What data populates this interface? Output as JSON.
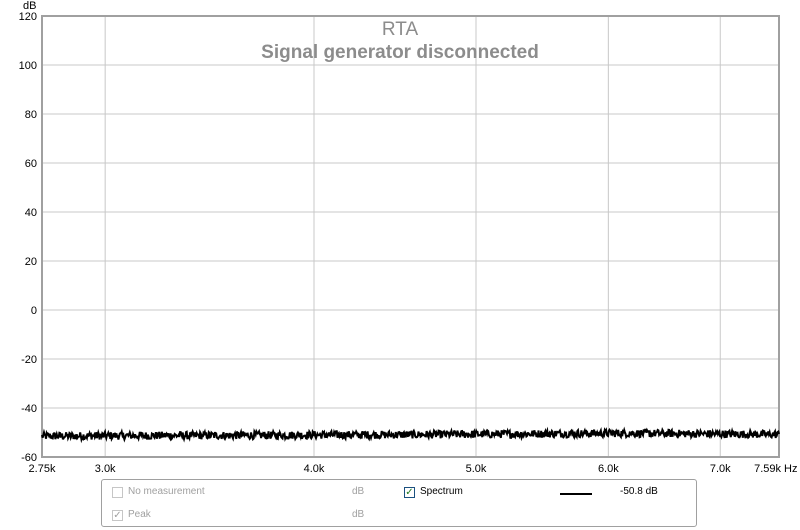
{
  "chart_data": {
    "type": "line",
    "title": "RTA",
    "subtitle": "Signal generator disconnected",
    "ylabel": "dB",
    "xunit": "Hz",
    "x_scale": "log",
    "xlim": [
      2750,
      7590
    ],
    "ylim": [
      -60,
      120
    ],
    "x_ticks": [
      {
        "value": 2750,
        "label": "2.75k"
      },
      {
        "value": 3000,
        "label": "3.0k"
      },
      {
        "value": 4000,
        "label": "4.0k"
      },
      {
        "value": 5000,
        "label": "5.0k"
      },
      {
        "value": 6000,
        "label": "6.0k"
      },
      {
        "value": 7000,
        "label": "7.0k"
      },
      {
        "value": 7590,
        "label": "7.59k"
      }
    ],
    "y_ticks": [
      120,
      100,
      80,
      60,
      40,
      20,
      0,
      -20,
      -40,
      -60
    ],
    "grid": true,
    "series": [
      {
        "name": "Spectrum",
        "color": "#000000",
        "x": [
          2750,
          3000,
          3500,
          4000,
          4500,
          5000,
          5500,
          6000,
          6500,
          7000,
          7590
        ],
        "y": [
          -51.5,
          -51.3,
          -51.2,
          -51.0,
          -50.9,
          -50.7,
          -50.5,
          -50.3,
          -50.4,
          -50.6,
          -50.8
        ]
      }
    ]
  },
  "legend": {
    "row1": {
      "left_label": "No measurement",
      "left_unit": "dB",
      "right_label": "Spectrum",
      "right_value": "-50.8 dB"
    },
    "row2": {
      "left_label": "Peak",
      "left_unit": "dB"
    }
  },
  "colors": {
    "grid": "#c8c8c8",
    "frame": "#a0a0a0",
    "title": "#8c8c8c",
    "series": "#000000"
  }
}
